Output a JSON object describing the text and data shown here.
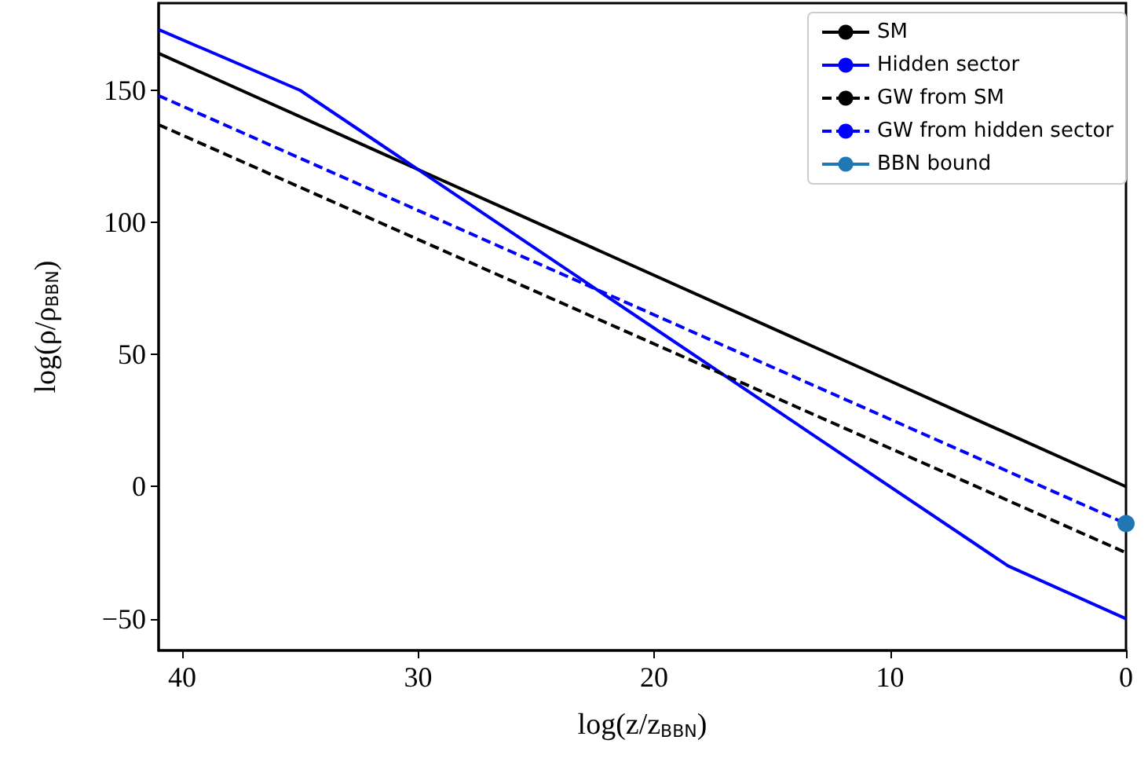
{
  "chart_data": {
    "type": "line",
    "xlabel": "log(z/z$_{BBN}$)",
    "ylabel": "log(ρ/ρ$_{BBN}$)",
    "xlim": [
      41,
      0
    ],
    "xticks": [
      40,
      30,
      20,
      10,
      0
    ],
    "ylim": [
      -62,
      183
    ],
    "yticks": [
      -50,
      0,
      50,
      100,
      150
    ],
    "grid": false,
    "legend": "top right",
    "series": [
      {
        "name": "SM",
        "color": "#000000",
        "line_style": "solid",
        "marker": "none",
        "x": [
          41,
          0
        ],
        "values": [
          164,
          0
        ]
      },
      {
        "name": "Hidden sector",
        "color": "#0000ff",
        "line_style": "solid",
        "marker": "none",
        "x": [
          41,
          35,
          5,
          0
        ],
        "values": [
          173,
          150,
          -30,
          -50
        ]
      },
      {
        "name": "GW from SM",
        "color": "#000000",
        "line_style": "dashed",
        "marker": "none",
        "x": [
          41,
          0
        ],
        "values": [
          137,
          -25
        ]
      },
      {
        "name": "GW from hidden sector",
        "color": "#0000ff",
        "line_style": "dashed",
        "marker": "none",
        "x": [
          41,
          0
        ],
        "values": [
          148,
          -14
        ]
      },
      {
        "name": "BBN bound",
        "color": "#1f77b4",
        "line_style": "solid",
        "marker": "circle",
        "x": [
          0
        ],
        "values": [
          -14
        ]
      }
    ]
  }
}
